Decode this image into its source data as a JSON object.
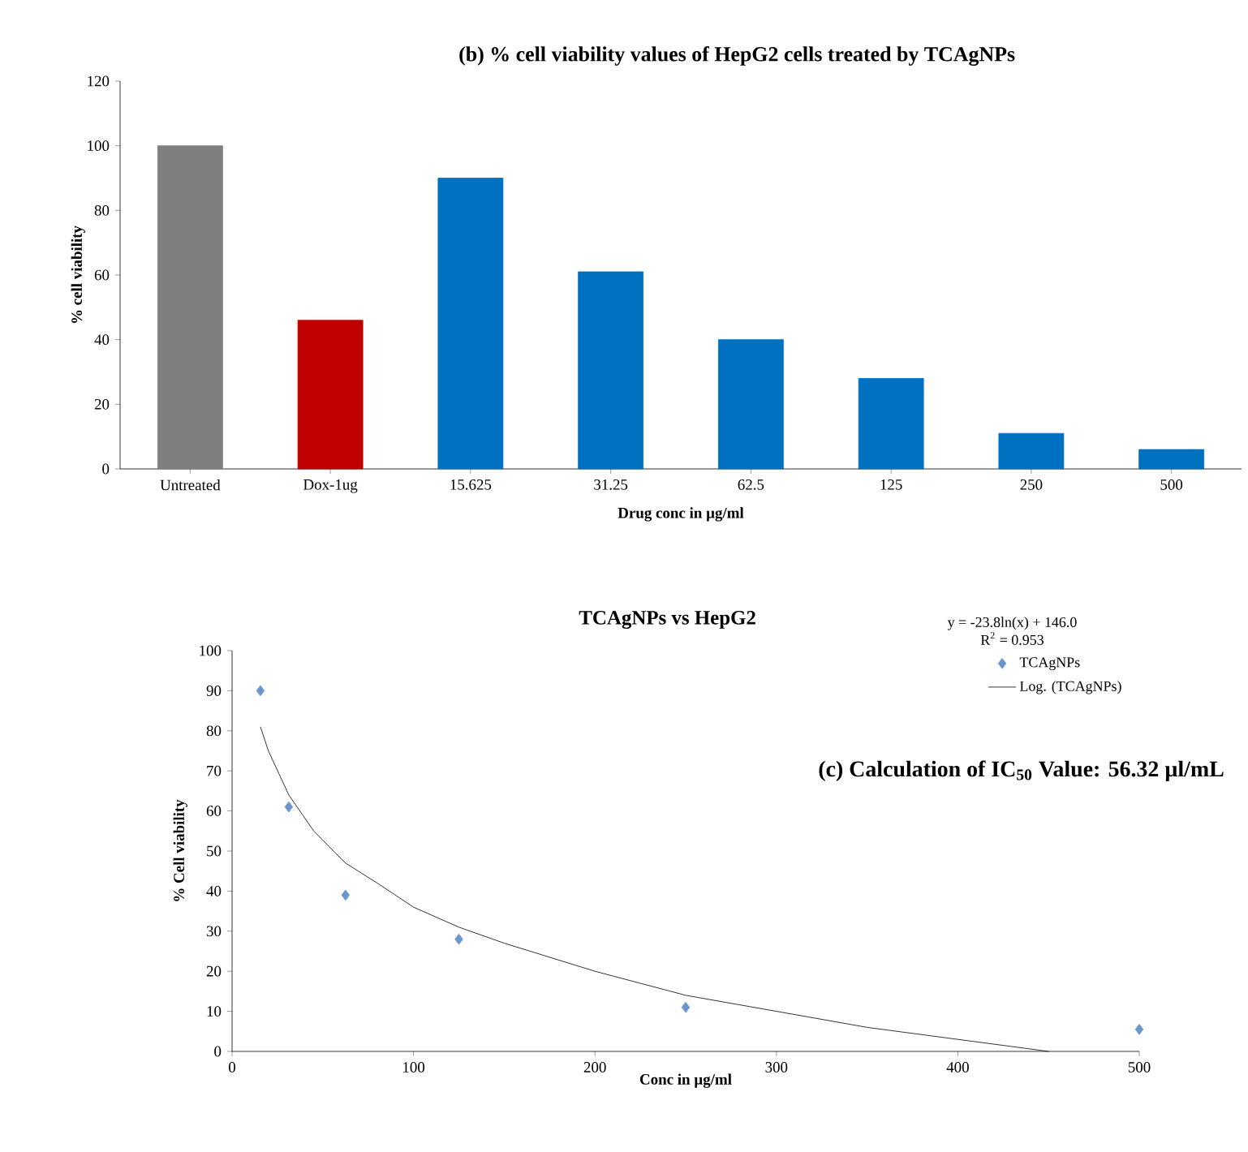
{
  "chart_data": [
    {
      "type": "bar",
      "title": "(b)   % cell viability values of HepG2 cells treated by TCAgNPs",
      "xlabel": "Drug conc in µg/ml",
      "ylabel": "% cell viability",
      "categories": [
        "Untreated",
        "Dox-1ug",
        "15.625",
        "31.25",
        "62.5",
        "125",
        "250",
        "500"
      ],
      "values": [
        100,
        46,
        90,
        61,
        40,
        28,
        11,
        6
      ],
      "colors": [
        "#7f7f7f",
        "#c00000",
        "#0070c0",
        "#0070c0",
        "#0070c0",
        "#0070c0",
        "#0070c0",
        "#0070c0"
      ],
      "ylim": [
        0,
        120
      ],
      "yticks": [
        0,
        20,
        40,
        60,
        80,
        100,
        120
      ]
    },
    {
      "type": "scatter",
      "title": "TCAgNPs vs HepG2",
      "xlabel": "Conc in µg/ml",
      "ylabel": "% Cell viability",
      "annotations": [
        "y = -23.8ln(x) + 146.0",
        "R$^{2}$ = 0.953",
        "(c) Calculation of IC$_{50}$ Value: 56.32 µl/mL"
      ],
      "marker": "diamond",
      "legend": "top right",
      "xlim": [
        0,
        500
      ],
      "xticks": [
        0,
        100,
        200,
        300,
        400,
        500
      ],
      "ylim": [
        0,
        100
      ],
      "yticks": [
        0,
        10,
        20,
        30,
        40,
        50,
        60,
        70,
        80,
        90,
        100
      ],
      "series": [
        {
          "name": "TCAgNPs",
          "color": "#6a96cc",
          "x": [
            15.625,
            31.25,
            62.5,
            125,
            250,
            500
          ],
          "values": [
            90,
            61,
            39,
            28,
            11,
            5.5
          ]
        },
        {
          "name": "Log. (TCAgNPs)",
          "type": "line",
          "marker": "none",
          "color": "#000000",
          "x": [
            15.625,
            20,
            31.25,
            45,
            62.5,
            80,
            100,
            125,
            150,
            200,
            250,
            300,
            350,
            400,
            450
          ],
          "values": [
            81,
            75,
            64,
            55,
            47,
            42,
            36,
            31,
            27,
            20,
            14,
            10,
            6,
            3,
            0
          ]
        }
      ]
    }
  ]
}
